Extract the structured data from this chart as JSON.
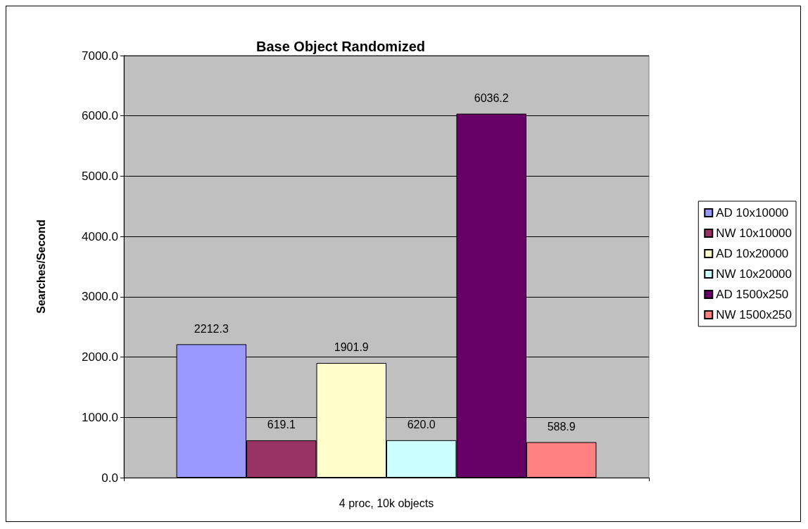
{
  "chart_data": {
    "type": "bar",
    "title": "Base Object Randomized",
    "xlabel": "4 proc, 10k objects",
    "ylabel": "Searches/Second",
    "categories": [
      null
    ],
    "series": [
      {
        "name": "AD 10x10000",
        "color": "#9999ff",
        "values": [
          2212.3
        ],
        "value_labels": [
          "2212.3"
        ]
      },
      {
        "name": "NW 10x10000",
        "color": "#993366",
        "values": [
          619.1
        ],
        "value_labels": [
          "619.1"
        ]
      },
      {
        "name": "AD 10x20000",
        "color": "#ffffcc",
        "values": [
          1901.9
        ],
        "value_labels": [
          "1901.9"
        ]
      },
      {
        "name": "NW 10x20000",
        "color": "#ccffff",
        "values": [
          620.0
        ],
        "value_labels": [
          "620.0"
        ]
      },
      {
        "name": "AD 1500x250",
        "color": "#660066",
        "values": [
          6036.2
        ],
        "value_labels": [
          "6036.2"
        ]
      },
      {
        "name": "NW 1500x250",
        "color": "#ff8080",
        "values": [
          588.9
        ],
        "value_labels": [
          "588.9"
        ]
      }
    ],
    "ylim": [
      0,
      7000
    ],
    "yticks": [
      {
        "value": 0,
        "label": "0.0"
      },
      {
        "value": 1000,
        "label": "1000.0"
      },
      {
        "value": 2000,
        "label": "2000.0"
      },
      {
        "value": 3000,
        "label": "3000.0"
      },
      {
        "value": 4000,
        "label": "4000.0"
      },
      {
        "value": 5000,
        "label": "5000.0"
      },
      {
        "value": 6000,
        "label": "6000.0"
      },
      {
        "value": 7000,
        "label": "7000.0"
      }
    ],
    "grid": "y",
    "legend": "right"
  }
}
